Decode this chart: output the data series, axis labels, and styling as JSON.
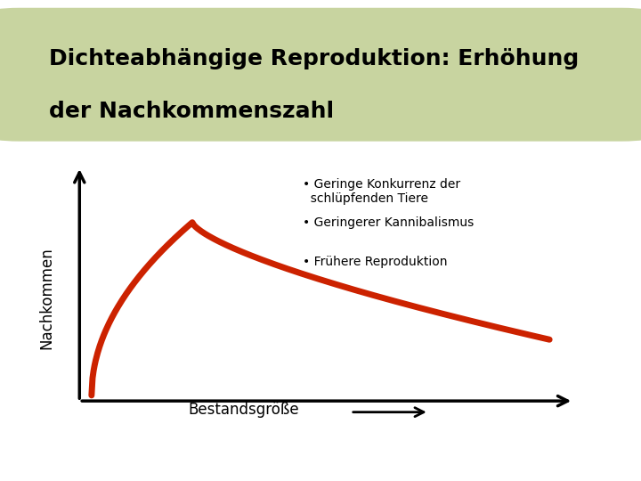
{
  "title_line1": "Dichteabhängige Reproduktion: Erhöhung",
  "title_line2": "der Nachkommenszahl",
  "title_bg_color": "#c8d4a0",
  "main_bg_color": "#ffffff",
  "curve_color": "#cc2200",
  "curve_linewidth": 5,
  "ylabel": "Nachkommen",
  "xlabel": "Bestandsgröße",
  "bullet_points": [
    "Geringe Konkurrenz der\n  schlüpfenden Tiere",
    "Geringerer Kannibalismus",
    "Frühere Reproduktion"
  ],
  "axis_color": "#000000",
  "bottom_bg_color": "#c8c8a0",
  "footer_bg_color": "#d4d4b0"
}
